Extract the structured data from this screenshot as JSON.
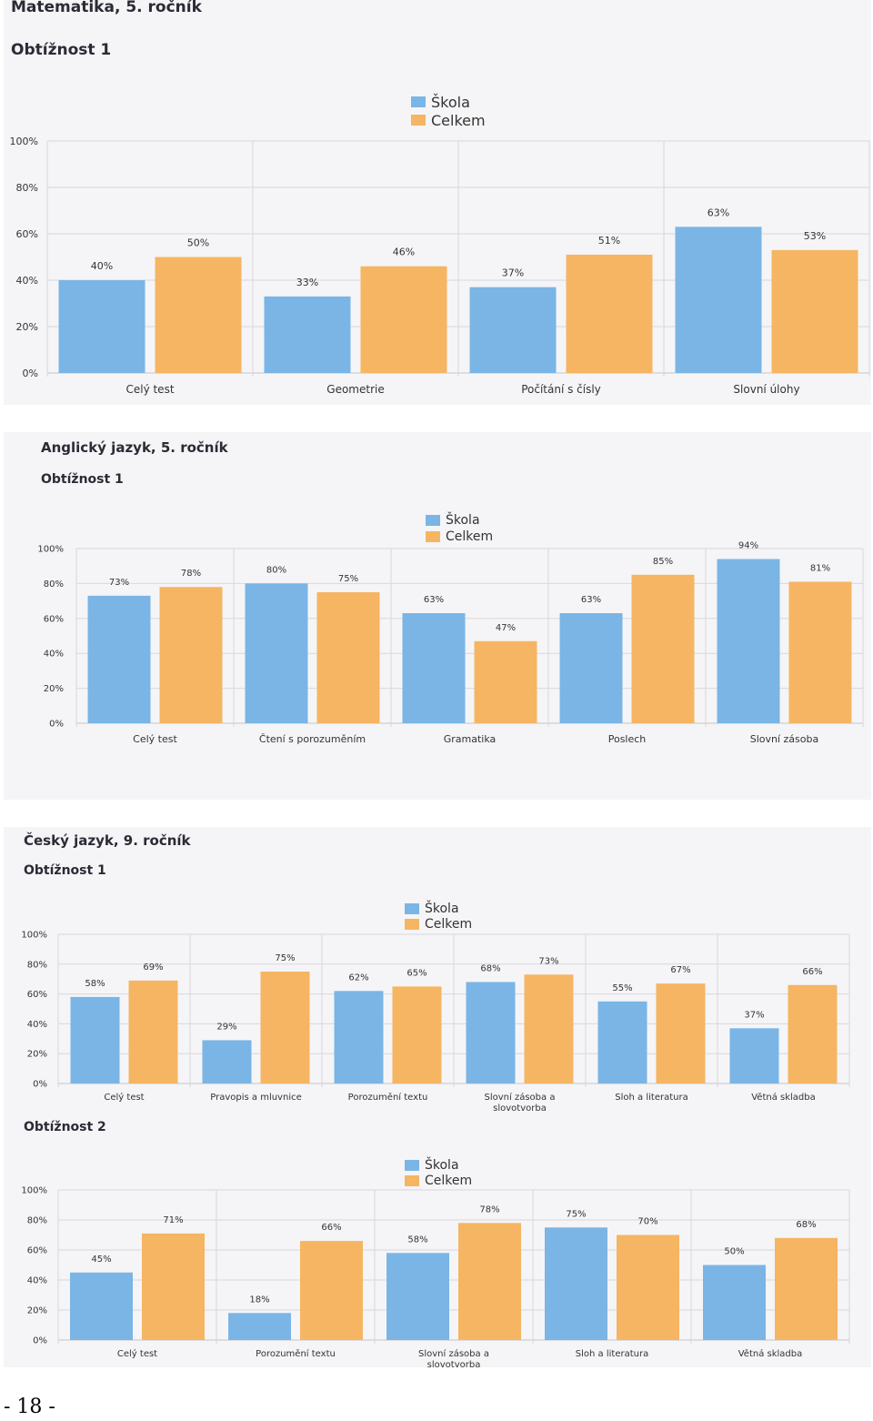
{
  "legend": {
    "school": "Škola",
    "overall": "Celkem"
  },
  "colors": {
    "school": "#7ab5e6",
    "overall": "#f5b562",
    "grid": "#d8d8dc",
    "axis": "#c5c5ca",
    "text": "#333333"
  },
  "page_number": "- 18 -",
  "panels": [
    {
      "subject": "Matematika, 5. ročník",
      "difficulty": "Obtížnost 1"
    },
    {
      "subject": "Anglický jazyk, 5. ročník",
      "difficulty": "Obtížnost 1"
    },
    {
      "subject": "Český jazyk, 9. ročník",
      "difficulty": "Obtížnost 1",
      "difficulty2": "Obtížnost 2"
    }
  ],
  "chart_data": [
    {
      "type": "bar",
      "title": "Matematika, 5. ročník",
      "subtitle": "Obtížnost 1",
      "categories": [
        "Celý test",
        "Geometrie",
        "Počítání s čísly",
        "Slovní úlohy"
      ],
      "series": [
        {
          "name": "Škola",
          "values": [
            40,
            33,
            37,
            63
          ]
        },
        {
          "name": "Celkem",
          "values": [
            50,
            46,
            51,
            53
          ]
        }
      ],
      "data_labels": [
        [
          "40%",
          "33%",
          "37%",
          "63%"
        ],
        [
          "50%",
          "46%",
          "51%",
          "53%"
        ]
      ],
      "yticks": [
        "0%",
        "20%",
        "40%",
        "60%",
        "80%",
        "100%"
      ],
      "ylim": [
        0,
        100
      ],
      "grid": true,
      "legend": "top-center"
    },
    {
      "type": "bar",
      "title": "Anglický jazyk, 5. ročník",
      "subtitle": "Obtížnost 1",
      "categories": [
        "Celý test",
        "Čtení s porozuměním",
        "Gramatika",
        "Poslech",
        "Slovní zásoba"
      ],
      "series": [
        {
          "name": "Škola",
          "values": [
            73,
            80,
            63,
            63,
            94
          ]
        },
        {
          "name": "Celkem",
          "values": [
            78,
            75,
            47,
            85,
            81
          ]
        }
      ],
      "data_labels": [
        [
          "73%",
          "80%",
          "63%",
          "63%",
          "94%"
        ],
        [
          "78%",
          "75%",
          "47%",
          "85%",
          "81%"
        ]
      ],
      "yticks": [
        "0%",
        "20%",
        "40%",
        "60%",
        "80%",
        "100%"
      ],
      "ylim": [
        0,
        100
      ],
      "grid": true,
      "legend": "top-center"
    },
    {
      "type": "bar",
      "title": "Český jazyk, 9. ročník",
      "subtitle": "Obtížnost 1",
      "categories": [
        "Celý test",
        "Pravopis a mluvnice",
        "Porozumění textu",
        "Slovní zásoba a slovotvorba",
        "Sloh a literatura",
        "Větná skladba"
      ],
      "series": [
        {
          "name": "Škola",
          "values": [
            58,
            29,
            62,
            68,
            55,
            37
          ]
        },
        {
          "name": "Celkem",
          "values": [
            69,
            75,
            65,
            73,
            67,
            66
          ]
        }
      ],
      "data_labels": [
        [
          "58%",
          "29%",
          "62%",
          "68%",
          "55%",
          "37%"
        ],
        [
          "69%",
          "75%",
          "65%",
          "73%",
          "67%",
          "66%"
        ]
      ],
      "yticks": [
        "0%",
        "20%",
        "40%",
        "60%",
        "80%",
        "100%"
      ],
      "ylim": [
        0,
        100
      ],
      "grid": true,
      "legend": "top-center"
    },
    {
      "type": "bar",
      "title": "Český jazyk, 9. ročník",
      "subtitle": "Obtížnost 2",
      "categories": [
        "Celý test",
        "Porozumění textu",
        "Slovní zásoba a slovotvorba",
        "Sloh a literatura",
        "Větná skladba"
      ],
      "series": [
        {
          "name": "Škola",
          "values": [
            45,
            18,
            58,
            75,
            50
          ]
        },
        {
          "name": "Celkem",
          "values": [
            71,
            66,
            78,
            70,
            68
          ]
        }
      ],
      "data_labels": [
        [
          "45%",
          "18%",
          "58%",
          "75%",
          "50%"
        ],
        [
          "71%",
          "66%",
          "78%",
          "70%",
          "68%"
        ]
      ],
      "yticks": [
        "0%",
        "20%",
        "40%",
        "60%",
        "80%",
        "100%"
      ],
      "ylim": [
        0,
        100
      ],
      "grid": true,
      "legend": "top-center"
    }
  ]
}
